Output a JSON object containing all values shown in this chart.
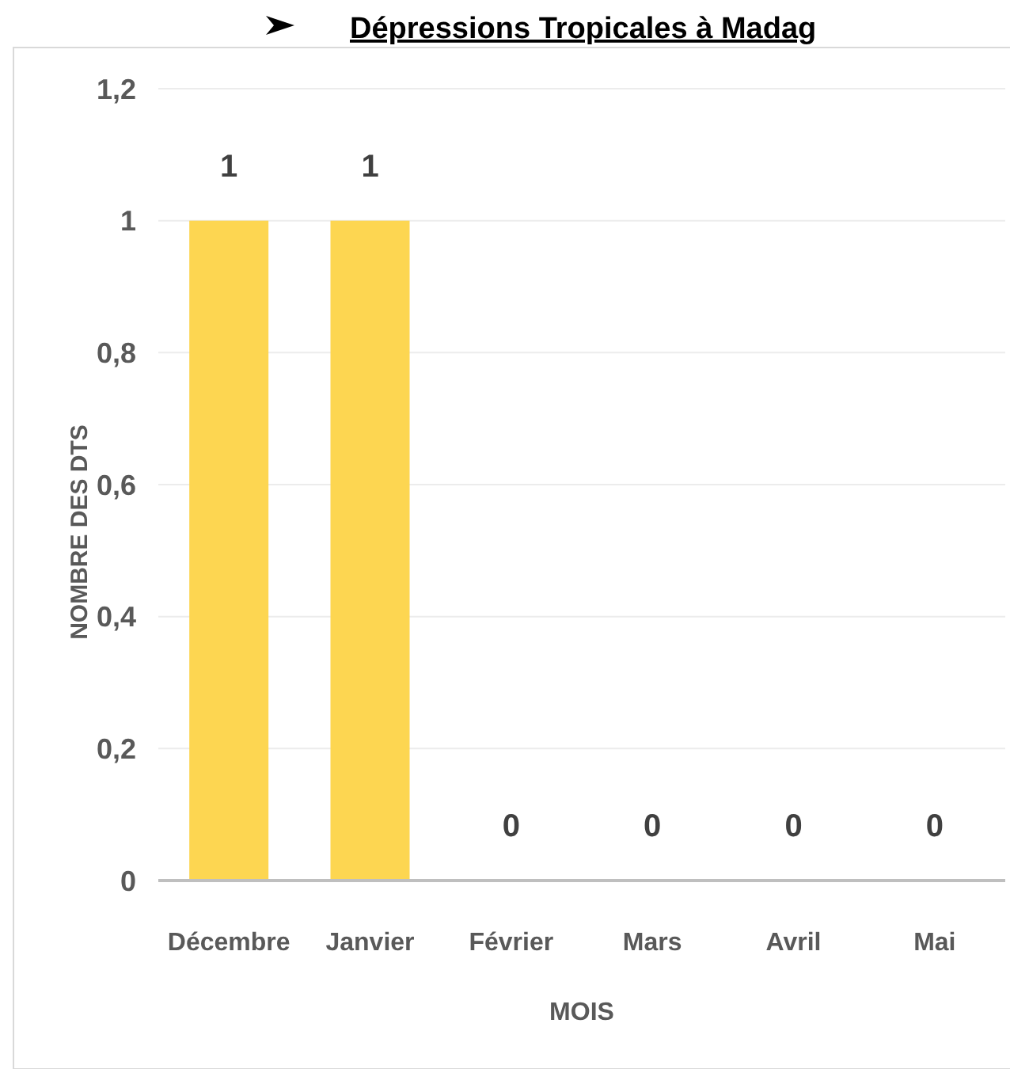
{
  "chart_data": {
    "type": "bar",
    "title": "Dépressions Tropicales à Madag",
    "xlabel": "MOIS",
    "ylabel": "NOMBRE DES DTS",
    "categories": [
      "Décembre",
      "Janvier",
      "Février",
      "Mars",
      "Avril",
      "Mai"
    ],
    "values": [
      1,
      1,
      0,
      0,
      0,
      0
    ],
    "color": "#fdd651",
    "ylim": [
      0,
      1.2
    ],
    "yticks": [
      0,
      {
        "value": 0.2,
        "label": "0,2"
      },
      {
        "value": 0.4,
        "label": "0,4"
      },
      {
        "value": 0.6,
        "label": "0,6"
      },
      {
        "value": 0.8,
        "label": "0,8"
      },
      1,
      {
        "value": 1.2,
        "label": "1,2"
      }
    ],
    "grid": "y",
    "data_labels": true
  }
}
